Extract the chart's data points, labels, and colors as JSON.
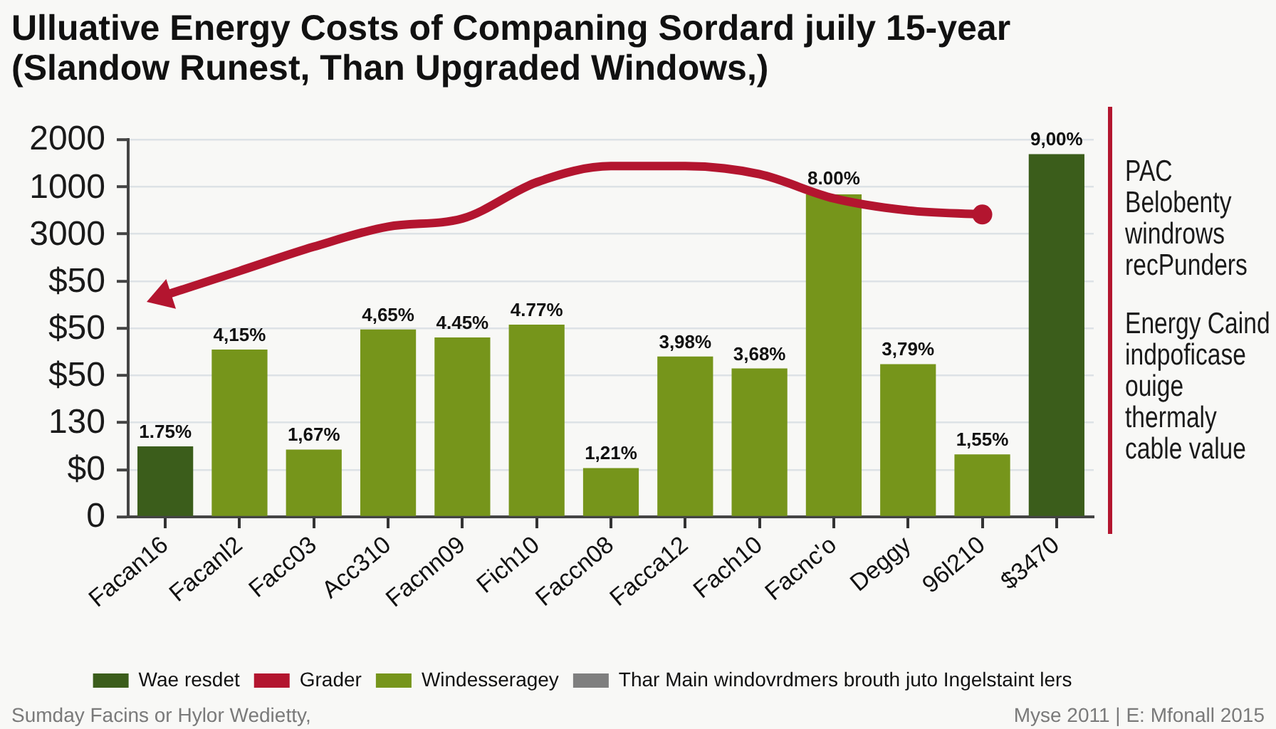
{
  "chart_data": {
    "type": "bar",
    "title": "Ulluative Energy Costs of Companing Sordard juily 15-year\n(Slandow Runest, Than Upgraded Windows,)",
    "categories": [
      "Facan16",
      "Facanl2",
      "Facc03",
      "Acc310",
      "Facnn09",
      "Fich10",
      "Faccn08",
      "Facca12",
      "Fach10",
      "Facnc'o",
      "Deggy",
      "96l210",
      "$3470"
    ],
    "series": [
      {
        "name": "Wae resdet",
        "color": "#3b5d1b",
        "values": [
          1.75,
          null,
          null,
          null,
          null,
          null,
          null,
          null,
          null,
          null,
          null,
          null,
          9.0
        ],
        "value_labels": [
          "1.75%",
          null,
          null,
          null,
          null,
          null,
          null,
          null,
          null,
          null,
          null,
          null,
          "9,00%"
        ]
      },
      {
        "name": "Grader",
        "type": "line",
        "color": "#b3152f",
        "values": [
          5.5,
          6.1,
          6.7,
          7.2,
          7.4,
          8.3,
          8.7,
          8.7,
          8.5,
          7.9,
          7.6,
          7.5,
          null
        ]
      },
      {
        "name": "Windesseragey",
        "color": "#76951b",
        "values": [
          null,
          4.15,
          1.67,
          4.65,
          4.45,
          4.77,
          1.21,
          3.98,
          3.68,
          8.0,
          3.79,
          1.55,
          null
        ],
        "value_labels": [
          null,
          "4,15%",
          "1,67%",
          "4,65%",
          "4.45%",
          "4.77%",
          "1,21%",
          "3,98%",
          "3,68%",
          "8.00%",
          "3,79%",
          "1,55%",
          null
        ]
      },
      {
        "name": "Thar Main windovrdmers brouth juto Ingelstaint lers",
        "color": "#7f7f7f",
        "values": [
          null,
          null,
          null,
          null,
          null,
          null,
          null,
          null,
          null,
          null,
          null,
          null,
          null
        ]
      }
    ],
    "grid": "y",
    "legend": "bottom",
    "annotations": [
      "2000\n1000\n3000\n$50\n$50\n$50\n130\n$0\n0",
      "PAC\nBelobenty\nwindrows\nrecPunders",
      "Energy Caind\nindpoficase\nouige\nthermaly\ncable value",
      "Sumday Facins or Hylor Wedietty,",
      "Myse 2011 | E: Mfonall 2015"
    ]
  }
}
